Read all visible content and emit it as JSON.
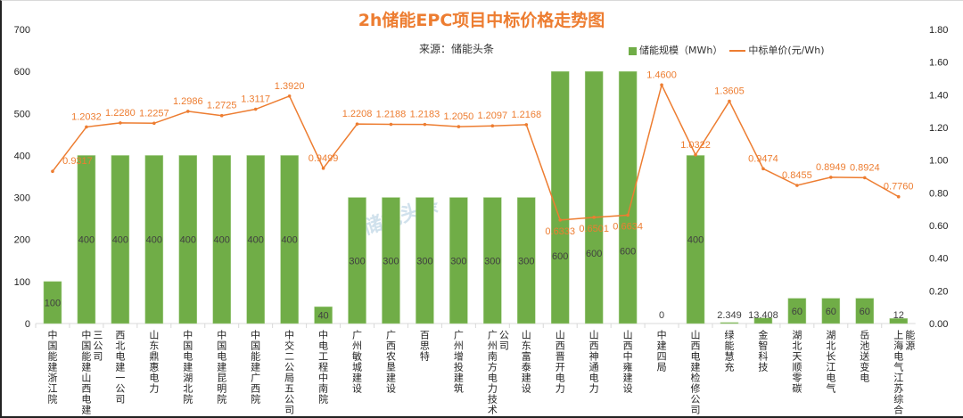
{
  "chart_data": {
    "type": "bar+line",
    "title": "2h储能EPC项目中标价格走势图",
    "subtitle": "来源：储能头条",
    "watermark": "储能头条",
    "legend": [
      "储能规模（MWh）",
      "中标单价(元/Wh)"
    ],
    "legend_position": "top-right",
    "categories": [
      "中国能建浙江院",
      "中国能建山西电建三公司",
      "西北电建一公司",
      "山东鼎惠电力",
      "中国电建湖北院",
      "中国电建昆明院",
      "中国能建广西院",
      "中交二公局五公司",
      "中电工程中南院",
      "广州敏城建设",
      "广西农垦建设",
      "百思特",
      "广州增投建筑",
      "广州南方电力技术公司",
      "山东富泰建设",
      "山西晋开电力",
      "山西神通电力",
      "山西中雍建设",
      "中建四局",
      "山西电建检修公司",
      "绿能慧充",
      "金智科技",
      "湖北天顺零碳",
      "湖北长江电气",
      "岳池送变电",
      "上海电气江苏综合能源"
    ],
    "series": [
      {
        "name": "储能规模（MWh）",
        "axis": "left",
        "type": "bar",
        "color": "#70AD47",
        "values": [
          100,
          400,
          400,
          400,
          400,
          400,
          400,
          400,
          40,
          300,
          300,
          300,
          300,
          300,
          300,
          600,
          600,
          600,
          0,
          400,
          2.349,
          13.408,
          60,
          60,
          60,
          12
        ],
        "labels": [
          "100",
          "400",
          "400",
          "400",
          "400",
          "400",
          "400",
          "400",
          "40",
          "300",
          "300",
          "300",
          "300",
          "300",
          "300",
          "600",
          "600",
          "600",
          "0",
          "400",
          "2.349",
          "13.408",
          "60",
          "60",
          "60",
          "12"
        ]
      },
      {
        "name": "中标单价(元/Wh)",
        "axis": "right",
        "type": "line",
        "color": "#ED7D31",
        "values": [
          0.9317,
          1.2032,
          1.228,
          1.2257,
          1.2986,
          1.2725,
          1.3117,
          1.392,
          0.9499,
          1.2208,
          1.2188,
          1.2183,
          1.205,
          1.2097,
          1.2168,
          0.6333,
          0.6501,
          0.6634,
          1.46,
          1.0322,
          1.3605,
          0.9474,
          0.8455,
          0.8949,
          0.8924,
          0.776
        ],
        "labels": [
          "0.9317",
          "1.2032",
          "1.2280",
          "1.2257",
          "1.2986",
          "1.2725",
          "1.3117",
          "1.3920",
          "0.9499",
          "1.2208",
          "1.2188",
          "1.2183",
          "1.2050",
          "1.2097",
          "1.2168",
          "0.6333",
          "0.6501",
          "0.6634",
          "1.4600",
          "1.0322",
          "1.3605",
          "0.9474",
          "0.8455",
          "0.8949",
          "0.8924",
          "0.7760"
        ]
      }
    ],
    "ylim_left": [
      0,
      700
    ],
    "yticks_left": [
      "0",
      "100",
      "200",
      "300",
      "400",
      "500",
      "600",
      "700"
    ],
    "ylim_right": [
      0,
      1.8
    ],
    "yticks_right": [
      "0.00",
      "0.20",
      "0.40",
      "0.60",
      "0.80",
      "1.00",
      "1.20",
      "1.40",
      "1.60",
      "1.80"
    ],
    "grid": false
  }
}
